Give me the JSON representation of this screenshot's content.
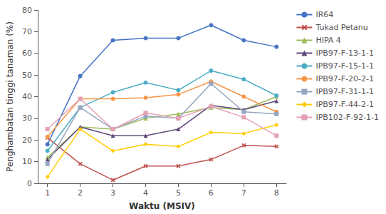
{
  "chart_data": {
    "type": "line",
    "xlabel": "Waktu (MSIV)",
    "ylabel": "Penghambatan tinggi tanaman (%)",
    "x": [
      1,
      2,
      3,
      4,
      5,
      6,
      7,
      8
    ],
    "series": [
      {
        "name": "IR64",
        "color": "#4472C4",
        "marker": "circle",
        "values": [
          18,
          49.5,
          66,
          67,
          67,
          73,
          66,
          63
        ]
      },
      {
        "name": "Tukad Petanu",
        "color": "#C0504D",
        "marker": "x",
        "values": [
          21,
          9,
          1.5,
          8,
          8,
          11,
          17.5,
          17
        ]
      },
      {
        "name": "HIPA 4",
        "color": "#9BBB59",
        "marker": "triangle",
        "values": [
          12,
          26,
          25,
          30,
          32,
          35,
          34,
          40
        ]
      },
      {
        "name": "IPB97-F-13-1-1",
        "color": "#604A7B",
        "marker": "triangle",
        "values": [
          11,
          26,
          22,
          22,
          25,
          36,
          34,
          38
        ]
      },
      {
        "name": "IPB97-F-15-1-1",
        "color": "#4BACC6",
        "marker": "circle",
        "values": [
          15,
          35,
          42,
          46.5,
          43,
          52,
          48,
          40.5
        ]
      },
      {
        "name": "IPB97-F-20-2-1",
        "color": "#F79646",
        "marker": "circle",
        "values": [
          21.5,
          39,
          39,
          39.5,
          41,
          47,
          40,
          33
        ]
      },
      {
        "name": "IPB97-F-31-1-1",
        "color": "#95A5C0",
        "marker": "square",
        "values": [
          9,
          35,
          25,
          31,
          30,
          46,
          33,
          32
        ]
      },
      {
        "name": "IPB97-F-44-2-1",
        "color": "#FFCC00",
        "marker": "diamond",
        "values": [
          3,
          25,
          15,
          18,
          17,
          23.5,
          23,
          27
        ]
      },
      {
        "name": "IPB102-F-92-1-1",
        "color": "#E6A0B4",
        "marker": "square",
        "values": [
          25,
          39,
          25,
          32.5,
          30,
          35.5,
          30.5,
          22
        ]
      }
    ],
    "xlim": [
      0.7,
      8.3
    ],
    "ylim": [
      0,
      80
    ],
    "xticks": [
      1,
      2,
      3,
      4,
      5,
      6,
      7,
      8
    ],
    "yticks": [
      0,
      10,
      20,
      30,
      40,
      50,
      60,
      70,
      80
    ],
    "grid": false,
    "legend": "right"
  }
}
